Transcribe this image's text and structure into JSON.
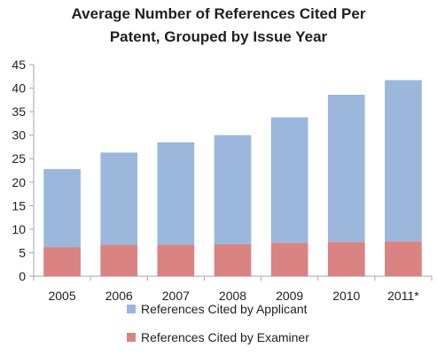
{
  "chart_data": {
    "type": "bar",
    "stacked": true,
    "title": [
      "Average Number of References Cited Per",
      "Patent, Grouped by Issue Year"
    ],
    "xlabel": "",
    "ylabel": "",
    "ylim": [
      0,
      45
    ],
    "yticks": [
      0,
      5,
      10,
      15,
      20,
      25,
      30,
      35,
      40,
      45
    ],
    "categories": [
      "2005",
      "2006",
      "2007",
      "2008",
      "2009",
      "2010",
      "2011*"
    ],
    "series": [
      {
        "name": "References Cited by Examiner",
        "color": "#d98383",
        "values": [
          6.2,
          6.7,
          6.7,
          6.8,
          7.1,
          7.3,
          7.4
        ]
      },
      {
        "name": "References Cited by Applicant",
        "color": "#9bb8dc",
        "values": [
          16.6,
          19.6,
          21.8,
          23.2,
          26.7,
          31.3,
          34.3
        ]
      }
    ],
    "legend": {
      "position": "bottom",
      "entries": [
        "References Cited by Applicant",
        "References Cited by Examiner"
      ]
    },
    "grid": false,
    "axis_color": "#a6a6a6"
  }
}
